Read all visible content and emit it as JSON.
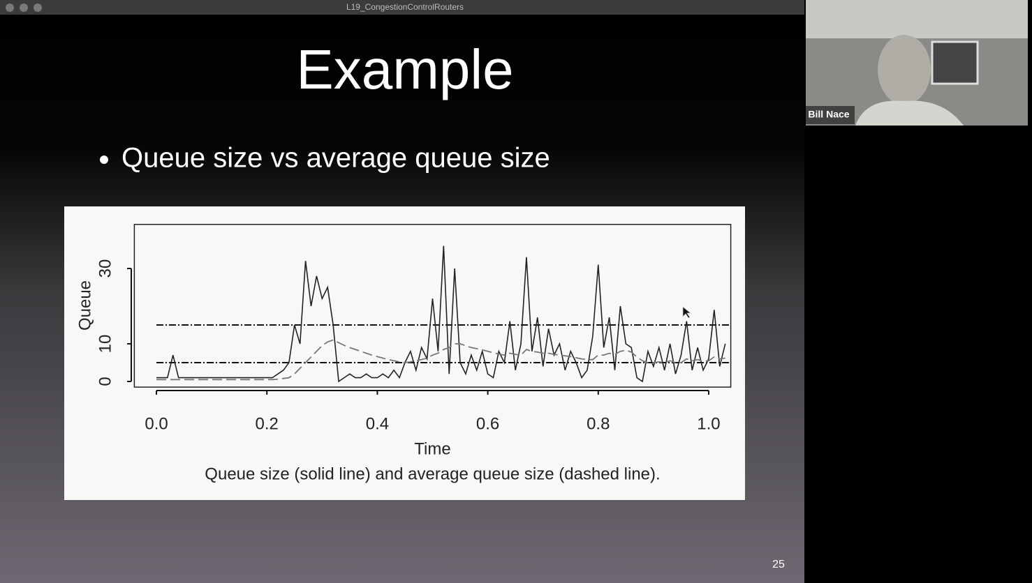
{
  "window": {
    "title": "L19_CongestionControlRouters"
  },
  "slide": {
    "title": "Example",
    "bullet": "Queue size vs average queue size",
    "page_number": "25"
  },
  "video": {
    "participant_name": "Bill Nace"
  },
  "chart_data": {
    "type": "line",
    "caption": "Queue size (solid line) and average queue size (dashed line).",
    "x_label": "Time",
    "y_label": "Queue",
    "x": [
      0,
      0.01,
      0.02,
      0.03,
      0.04,
      0.05,
      0.06,
      0.07,
      0.08,
      0.09,
      0.1,
      0.11,
      0.12,
      0.13,
      0.14,
      0.15,
      0.16,
      0.17,
      0.18,
      0.19,
      0.2,
      0.21,
      0.22,
      0.23,
      0.24,
      0.25,
      0.26,
      0.27,
      0.28,
      0.29,
      0.3,
      0.31,
      0.32,
      0.33,
      0.34,
      0.35,
      0.36,
      0.37,
      0.38,
      0.39,
      0.4,
      0.41,
      0.42,
      0.43,
      0.44,
      0.45,
      0.46,
      0.47,
      0.48,
      0.49,
      0.5,
      0.51,
      0.52,
      0.53,
      0.54,
      0.55,
      0.56,
      0.57,
      0.58,
      0.59,
      0.6,
      0.61,
      0.62,
      0.63,
      0.64,
      0.65,
      0.66,
      0.67,
      0.68,
      0.69,
      0.7,
      0.71,
      0.72,
      0.73,
      0.74,
      0.75,
      0.76,
      0.77,
      0.78,
      0.79,
      0.8,
      0.81,
      0.82,
      0.83,
      0.84,
      0.85,
      0.86,
      0.87,
      0.88,
      0.89,
      0.9,
      0.91,
      0.92,
      0.93,
      0.94,
      0.95,
      0.96,
      0.97,
      0.98,
      0.99,
      1,
      1.01,
      1.02,
      1.03
    ],
    "series": [
      {
        "color": "#222222",
        "dashed": false,
        "values": [
          1,
          1,
          1,
          7,
          1,
          1,
          1,
          1,
          1,
          1,
          1,
          1,
          1,
          1,
          1,
          1,
          1,
          1,
          1,
          1,
          1,
          1,
          2,
          3,
          5,
          15,
          10,
          32,
          20,
          28,
          22,
          25,
          15,
          0,
          1,
          2,
          1,
          1,
          2,
          1,
          1,
          2,
          1,
          3,
          1,
          5,
          8,
          3,
          9,
          6,
          22,
          8,
          36,
          2,
          30,
          5,
          2,
          7,
          3,
          8,
          2,
          1,
          8,
          5,
          16,
          3,
          10,
          33,
          8,
          17,
          4,
          14,
          7,
          10,
          3,
          8,
          5,
          1,
          3,
          12,
          31,
          9,
          17,
          3,
          20,
          10,
          9,
          1,
          0,
          8,
          4,
          9,
          3,
          10,
          2,
          7,
          16,
          3,
          9,
          3,
          6,
          19,
          4,
          10
        ]
      },
      {
        "color": "#777777",
        "dashed": true,
        "values": [
          0.5,
          0.5,
          0.5,
          0.5,
          0.5,
          0.5,
          0.5,
          0.5,
          0.5,
          0.5,
          0.5,
          0.5,
          0.5,
          0.5,
          0.5,
          0.5,
          0.5,
          0.5,
          0.5,
          0.5,
          0.5,
          0.5,
          0.6,
          0.8,
          1,
          2,
          3.5,
          5,
          6.5,
          8,
          9.5,
          10.5,
          11,
          10.3,
          9.6,
          9,
          8.5,
          8,
          7.5,
          7,
          6.6,
          6.2,
          5.8,
          5.5,
          5.2,
          5,
          5.2,
          5.5,
          5.8,
          6.2,
          7,
          7.5,
          8.5,
          9,
          10,
          10,
          9.5,
          9,
          8.7,
          8.4,
          8,
          7.6,
          7.3,
          7,
          7.5,
          7.2,
          7,
          8.5,
          8,
          7.8,
          7.5,
          7.5,
          7.2,
          7,
          6.8,
          6.6,
          6.3,
          6,
          5.8,
          5.8,
          7,
          7,
          7.5,
          7.2,
          8,
          8.3,
          7.8,
          6.5,
          5.5,
          5,
          5,
          5.2,
          5,
          5.5,
          5,
          5,
          6,
          5.5,
          5.8,
          5.4,
          5.5,
          6.5,
          6,
          6.2
        ]
      }
    ],
    "hlines": [
      5,
      15
    ],
    "xlim": [
      -0.04,
      1.04
    ],
    "ylim": [
      -1.5,
      41.7
    ],
    "xticks": [
      {
        "value": 0,
        "label": "0.0"
      },
      0.2,
      0.4,
      0.6,
      0.8,
      {
        "value": 1,
        "label": "1.0"
      }
    ],
    "yticks": [
      0,
      10,
      30
    ]
  }
}
